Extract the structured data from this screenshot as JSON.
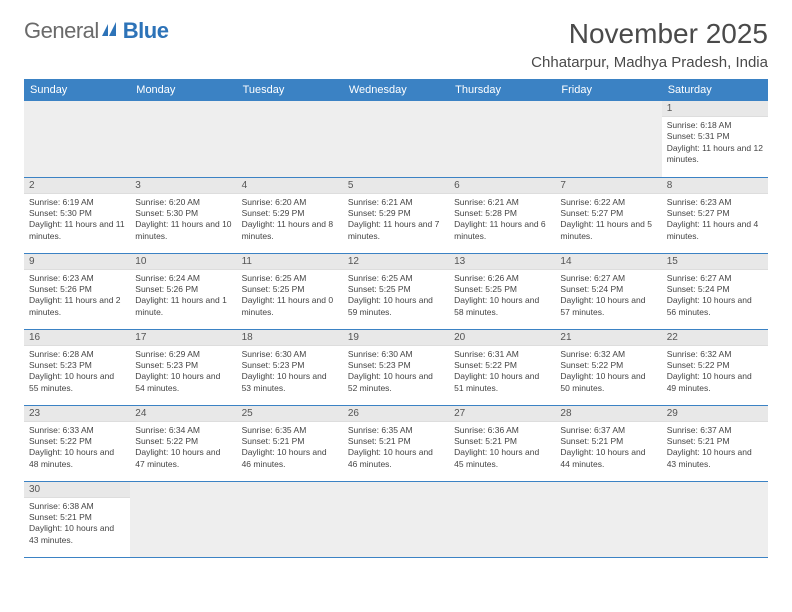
{
  "brand": {
    "word1": "General",
    "word2": "Blue"
  },
  "title": "November 2025",
  "location": "Chhatarpur, Madhya Pradesh, India",
  "colors": {
    "header_bg": "#3b82c4",
    "header_fg": "#ffffff",
    "daynum_bg": "#e8e8e8",
    "rule": "#3b82c4",
    "empty_bg": "#eeeeee",
    "text": "#444444",
    "logo_gray": "#6a6a6a",
    "logo_blue": "#2d73b8"
  },
  "weekdays": [
    "Sunday",
    "Monday",
    "Tuesday",
    "Wednesday",
    "Thursday",
    "Friday",
    "Saturday"
  ],
  "first_weekday_index": 6,
  "days": [
    {
      "n": 1,
      "sr": "6:18 AM",
      "ss": "5:31 PM",
      "dl": "11 hours and 12 minutes."
    },
    {
      "n": 2,
      "sr": "6:19 AM",
      "ss": "5:30 PM",
      "dl": "11 hours and 11 minutes."
    },
    {
      "n": 3,
      "sr": "6:20 AM",
      "ss": "5:30 PM",
      "dl": "11 hours and 10 minutes."
    },
    {
      "n": 4,
      "sr": "6:20 AM",
      "ss": "5:29 PM",
      "dl": "11 hours and 8 minutes."
    },
    {
      "n": 5,
      "sr": "6:21 AM",
      "ss": "5:29 PM",
      "dl": "11 hours and 7 minutes."
    },
    {
      "n": 6,
      "sr": "6:21 AM",
      "ss": "5:28 PM",
      "dl": "11 hours and 6 minutes."
    },
    {
      "n": 7,
      "sr": "6:22 AM",
      "ss": "5:27 PM",
      "dl": "11 hours and 5 minutes."
    },
    {
      "n": 8,
      "sr": "6:23 AM",
      "ss": "5:27 PM",
      "dl": "11 hours and 4 minutes."
    },
    {
      "n": 9,
      "sr": "6:23 AM",
      "ss": "5:26 PM",
      "dl": "11 hours and 2 minutes."
    },
    {
      "n": 10,
      "sr": "6:24 AM",
      "ss": "5:26 PM",
      "dl": "11 hours and 1 minute."
    },
    {
      "n": 11,
      "sr": "6:25 AM",
      "ss": "5:25 PM",
      "dl": "11 hours and 0 minutes."
    },
    {
      "n": 12,
      "sr": "6:25 AM",
      "ss": "5:25 PM",
      "dl": "10 hours and 59 minutes."
    },
    {
      "n": 13,
      "sr": "6:26 AM",
      "ss": "5:25 PM",
      "dl": "10 hours and 58 minutes."
    },
    {
      "n": 14,
      "sr": "6:27 AM",
      "ss": "5:24 PM",
      "dl": "10 hours and 57 minutes."
    },
    {
      "n": 15,
      "sr": "6:27 AM",
      "ss": "5:24 PM",
      "dl": "10 hours and 56 minutes."
    },
    {
      "n": 16,
      "sr": "6:28 AM",
      "ss": "5:23 PM",
      "dl": "10 hours and 55 minutes."
    },
    {
      "n": 17,
      "sr": "6:29 AM",
      "ss": "5:23 PM",
      "dl": "10 hours and 54 minutes."
    },
    {
      "n": 18,
      "sr": "6:30 AM",
      "ss": "5:23 PM",
      "dl": "10 hours and 53 minutes."
    },
    {
      "n": 19,
      "sr": "6:30 AM",
      "ss": "5:23 PM",
      "dl": "10 hours and 52 minutes."
    },
    {
      "n": 20,
      "sr": "6:31 AM",
      "ss": "5:22 PM",
      "dl": "10 hours and 51 minutes."
    },
    {
      "n": 21,
      "sr": "6:32 AM",
      "ss": "5:22 PM",
      "dl": "10 hours and 50 minutes."
    },
    {
      "n": 22,
      "sr": "6:32 AM",
      "ss": "5:22 PM",
      "dl": "10 hours and 49 minutes."
    },
    {
      "n": 23,
      "sr": "6:33 AM",
      "ss": "5:22 PM",
      "dl": "10 hours and 48 minutes."
    },
    {
      "n": 24,
      "sr": "6:34 AM",
      "ss": "5:22 PM",
      "dl": "10 hours and 47 minutes."
    },
    {
      "n": 25,
      "sr": "6:35 AM",
      "ss": "5:21 PM",
      "dl": "10 hours and 46 minutes."
    },
    {
      "n": 26,
      "sr": "6:35 AM",
      "ss": "5:21 PM",
      "dl": "10 hours and 46 minutes."
    },
    {
      "n": 27,
      "sr": "6:36 AM",
      "ss": "5:21 PM",
      "dl": "10 hours and 45 minutes."
    },
    {
      "n": 28,
      "sr": "6:37 AM",
      "ss": "5:21 PM",
      "dl": "10 hours and 44 minutes."
    },
    {
      "n": 29,
      "sr": "6:37 AM",
      "ss": "5:21 PM",
      "dl": "10 hours and 43 minutes."
    },
    {
      "n": 30,
      "sr": "6:38 AM",
      "ss": "5:21 PM",
      "dl": "10 hours and 43 minutes."
    }
  ],
  "labels": {
    "sunrise": "Sunrise:",
    "sunset": "Sunset:",
    "daylight": "Daylight:"
  }
}
